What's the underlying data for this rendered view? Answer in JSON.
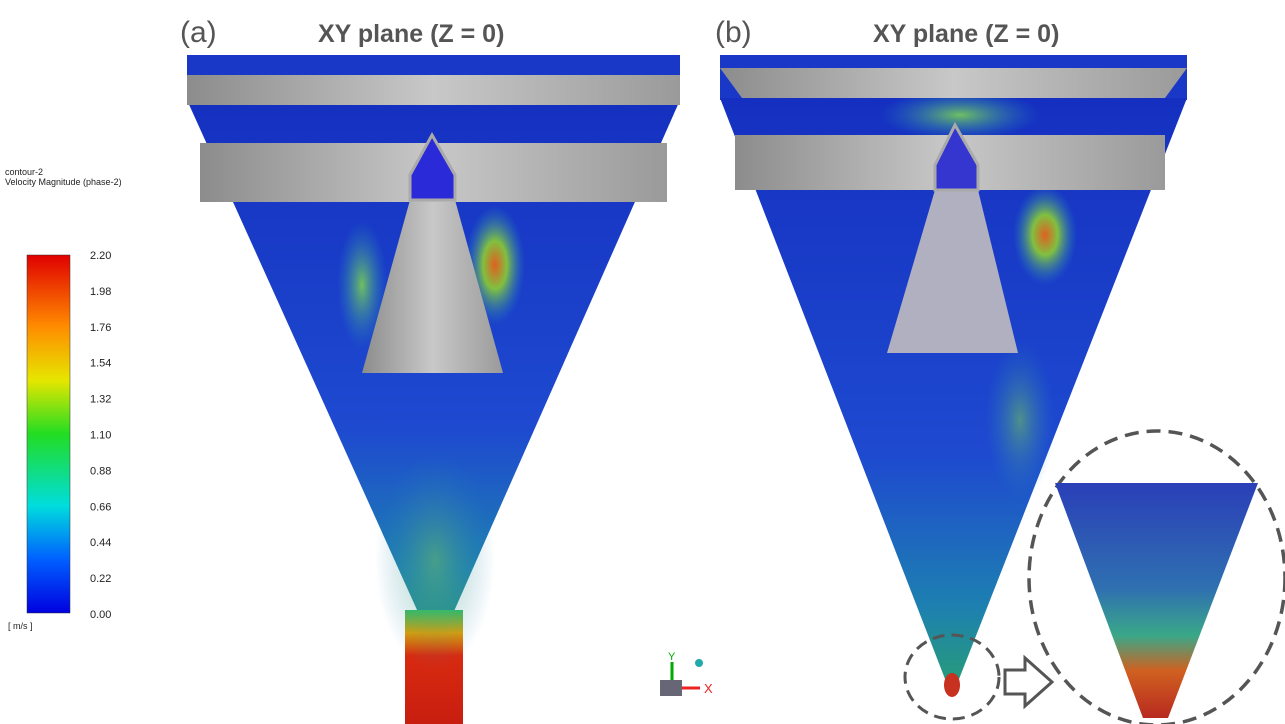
{
  "legend": {
    "name": "contour-2",
    "quantity": "Velocity Magnitude (phase-2)",
    "ticks": [
      "2.20",
      "1.98",
      "1.76",
      "1.54",
      "1.32",
      "1.10",
      "0.88",
      "0.66",
      "0.44",
      "0.22",
      "0.00"
    ],
    "unit": "[ m/s ]"
  },
  "panels": [
    {
      "label": "(a)",
      "title": "XY plane (Z = 0)"
    },
    {
      "label": "(b)",
      "title": "XY plane (Z = 0)"
    }
  ],
  "triad": {
    "y": "Y",
    "x": "X"
  }
}
